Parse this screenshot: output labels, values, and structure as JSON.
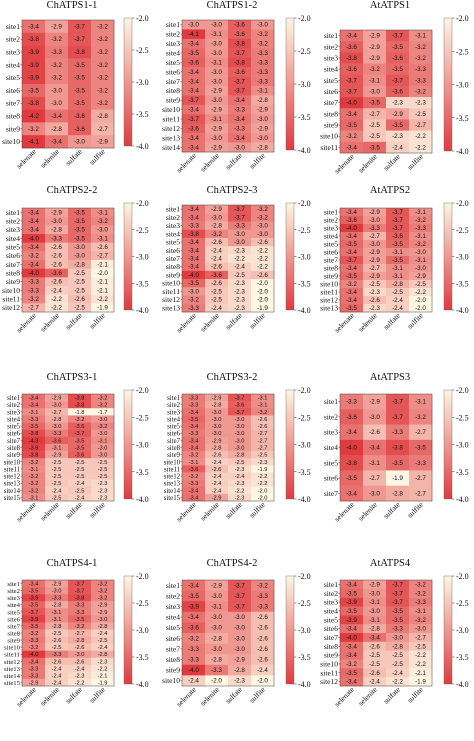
{
  "figure": {
    "compounds": [
      "selenate",
      "selenite",
      "sulfate",
      "sulfite"
    ],
    "colorbar_ticks": [
      "-2.0",
      "-2.5",
      "-3.0",
      "-3.5",
      "-4.0"
    ],
    "colorscale": {
      "min": -4.0,
      "max": -2.0,
      "low_color": "#e03a3e",
      "high_color": "#fdf6e3"
    }
  },
  "chart_data": [
    {
      "type": "heatmap",
      "title": "ChATPS1-1",
      "rows": [
        "site1",
        "site2",
        "site3",
        "site4",
        "site5",
        "site6",
        "site7",
        "site8",
        "site9",
        "site10"
      ],
      "columns": [
        "selenate",
        "selenite",
        "sulfate",
        "sulfite"
      ],
      "values": [
        [
          -3.4,
          -2.9,
          -3.7,
          -3.2
        ],
        [
          -3.8,
          -3.2,
          -3.7,
          -3.2
        ],
        [
          -3.9,
          -3.3,
          -3.8,
          -3.2
        ],
        [
          -3.9,
          -3.2,
          -3.5,
          -3.2
        ],
        [
          -3.9,
          -3.2,
          -3.5,
          -3.2
        ],
        [
          -3.5,
          -3.0,
          -3.5,
          -3.2
        ],
        [
          -3.8,
          -3.0,
          -3.5,
          -3.2
        ],
        [
          -4.2,
          -3.4,
          -3.6,
          -2.8
        ],
        [
          -3.2,
          -2.8,
          -3.6,
          -2.7
        ],
        [
          -4.1,
          -3.4,
          -3.0,
          -2.9
        ]
      ],
      "zlim": [
        -4.0,
        -2.0
      ]
    },
    {
      "type": "heatmap",
      "title": "ChATPS1-2",
      "rows": [
        "site1",
        "site2",
        "site3",
        "site4",
        "site5",
        "site6",
        "site7",
        "site8",
        "site9",
        "site10",
        "site11",
        "site12",
        "site13",
        "site14"
      ],
      "columns": [
        "selenate",
        "selenite",
        "sulfate",
        "sulfite"
      ],
      "values": [
        [
          -3.0,
          -3.0,
          -3.6,
          -3.0
        ],
        [
          -4.1,
          -3.1,
          -3.6,
          -3.2
        ],
        [
          -3.4,
          -3.0,
          -3.8,
          -3.2
        ],
        [
          -3.5,
          -3.0,
          -3.7,
          -3.3
        ],
        [
          -3.6,
          -3.1,
          -3.8,
          -3.3
        ],
        [
          -3.4,
          -3.0,
          -3.6,
          -3.3
        ],
        [
          -3.4,
          -3.0,
          -3.7,
          -3.3
        ],
        [
          -3.4,
          -2.9,
          -3.7,
          -3.1
        ],
        [
          -3.7,
          -3.0,
          -3.4,
          -2.8
        ],
        [
          -3.4,
          -2.9,
          -3.3,
          -2.9
        ],
        [
          -3.7,
          -3.1,
          -3.4,
          -3.0
        ],
        [
          -3.6,
          -2.9,
          -3.3,
          -2.9
        ],
        [
          -3.4,
          -3.0,
          -3.4,
          -3.0
        ],
        [
          -3.4,
          -2.9,
          -3.0,
          -2.8
        ]
      ],
      "zlim": [
        -4.0,
        -2.0
      ]
    },
    {
      "type": "heatmap",
      "title": "AtATPS1",
      "rows": [
        "site1",
        "site2",
        "site3",
        "site4",
        "site5",
        "site6",
        "site7",
        "site8",
        "site9",
        "site10",
        "site11"
      ],
      "columns": [
        "selenate",
        "selenite",
        "sulfate",
        "sulfite"
      ],
      "values": [
        [
          -3.4,
          -2.9,
          -3.7,
          -3.1
        ],
        [
          -3.6,
          -2.9,
          -3.5,
          -3.2
        ],
        [
          -3.8,
          -2.9,
          -3.6,
          -3.2
        ],
        [
          -3.6,
          -3.2,
          -3.5,
          -3.3
        ],
        [
          -3.7,
          -3.1,
          -3.7,
          -3.3
        ],
        [
          -3.7,
          -3.0,
          -3.6,
          -3.2
        ],
        [
          -4.0,
          -3.5,
          -2.3,
          -2.3
        ],
        [
          -3.4,
          -2.7,
          -2.9,
          -2.5
        ],
        [
          -3.5,
          -2.5,
          -3.5,
          -2.7
        ],
        [
          -3.2,
          -2.5,
          -2.3,
          -2.2
        ],
        [
          -3.4,
          -3.5,
          -2.4,
          -2.2
        ]
      ],
      "zlim": [
        -4.0,
        -2.0
      ]
    },
    {
      "type": "heatmap",
      "title": "ChATPS2-2",
      "rows": [
        "site1",
        "site2",
        "site3",
        "site4",
        "site5",
        "site6",
        "site7",
        "site8",
        "site9",
        "site10",
        "site11",
        "site12"
      ],
      "columns": [
        "selenate",
        "selenite",
        "sulfate",
        "sulfite"
      ],
      "values": [
        [
          -3.4,
          -2.9,
          -3.5,
          -3.1
        ],
        [
          -3.4,
          -3.0,
          -3.5,
          -3.2
        ],
        [
          -3.4,
          -2.8,
          -3.5,
          -3.0
        ],
        [
          -4.0,
          -3.3,
          -3.5,
          -3.1
        ],
        [
          -3.4,
          -2.6,
          -3.0,
          -2.6
        ],
        [
          -3.2,
          -2.6,
          -3.0,
          -2.7
        ],
        [
          -3.4,
          -2.6,
          -2.8,
          -2.1
        ],
        [
          -4.0,
          -3.6,
          -2.5,
          -2.0
        ],
        [
          -3.3,
          -2.6,
          -2.5,
          -2.1
        ],
        [
          -3.3,
          -2.4,
          -2.5,
          -2.1
        ],
        [
          -3.2,
          -2.2,
          -2.6,
          -2.2
        ],
        [
          -2.7,
          -2.2,
          -2.5,
          -1.9
        ]
      ],
      "zlim": [
        -4.0,
        -2.0
      ]
    },
    {
      "type": "heatmap",
      "title": "ChATPS2-3",
      "rows": [
        "site1",
        "site2",
        "site3",
        "site4",
        "site5",
        "site6",
        "site7",
        "site8",
        "site9",
        "site10",
        "site11",
        "site12",
        "site13"
      ],
      "columns": [
        "selenate",
        "selenite",
        "sulfate",
        "sulfite"
      ],
      "values": [
        [
          -3.4,
          -2.9,
          -3.7,
          -3.2
        ],
        [
          -3.4,
          -3.0,
          -3.7,
          -3.2
        ],
        [
          -3.3,
          -2.8,
          -3.3,
          -3.0
        ],
        [
          -3.8,
          -3.2,
          -3.0,
          -3.0
        ],
        [
          -3.4,
          -2.6,
          -3.0,
          -2.6
        ],
        [
          -3.4,
          -2.4,
          -2.3,
          -2.2
        ],
        [
          -3.4,
          -2.4,
          -2.2,
          -2.2
        ],
        [
          -3.4,
          -2.6,
          -2.4,
          -2.2
        ],
        [
          -4.0,
          -3.6,
          -2.5,
          -2.6
        ],
        [
          -3.5,
          -2.6,
          -2.3,
          -2.0
        ],
        [
          -3.0,
          -2.5,
          -2.3,
          -2.0
        ],
        [
          -3.2,
          -2.5,
          -2.3,
          -2.0
        ],
        [
          -3.3,
          -2.4,
          -2.3,
          -1.9
        ]
      ],
      "zlim": [
        -4.0,
        -2.0
      ]
    },
    {
      "type": "heatmap",
      "title": "AtATPS2",
      "rows": [
        "site1",
        "site2",
        "site3",
        "site4",
        "site5",
        "site6",
        "site7",
        "site8",
        "site9",
        "site10",
        "site11",
        "site12",
        "site13"
      ],
      "columns": [
        "selenate",
        "selenite",
        "sulfate",
        "sulfite"
      ],
      "values": [
        [
          -3.4,
          -2.9,
          -3.7,
          -3.1
        ],
        [
          -3.6,
          -3.0,
          -3.7,
          -3.2
        ],
        [
          -4.0,
          -3.3,
          -3.7,
          -3.3
        ],
        [
          -3.4,
          -2.7,
          -3.6,
          -3.1
        ],
        [
          -3.5,
          -3.0,
          -3.5,
          -3.2
        ],
        [
          -3.4,
          -2.9,
          -3.1,
          -3.0
        ],
        [
          -3.7,
          -2.9,
          -3.5,
          -3.1
        ],
        [
          -3.4,
          -2.7,
          -3.1,
          -3.0
        ],
        [
          -3.5,
          -2.9,
          -3.1,
          -2.9
        ],
        [
          -3.2,
          -2.5,
          -2.8,
          -2.5
        ],
        [
          -3.4,
          -2.3,
          -2.5,
          -2.2
        ],
        [
          -3.4,
          -2.6,
          -2.4,
          -2.0
        ],
        [
          -3.5,
          -2.3,
          -2.4,
          -2.0
        ]
      ],
      "zlim": [
        -4.0,
        -2.0
      ]
    },
    {
      "type": "heatmap",
      "title": "ChATPS3-1",
      "rows": [
        "site1",
        "site2",
        "site3",
        "site4",
        "site5",
        "site6",
        "site7",
        "site8",
        "site9",
        "site10",
        "site11",
        "site12",
        "site13",
        "site14",
        "site15"
      ],
      "columns": [
        "selenate",
        "selenite",
        "sulfate",
        "sulfite"
      ],
      "values": [
        [
          -3.4,
          -2.9,
          -3.8,
          -3.2
        ],
        [
          -3.4,
          -3.0,
          -3.8,
          -3.2
        ],
        [
          -3.1,
          -2.7,
          -1.8,
          -1.7
        ],
        [
          -3.3,
          -2.8,
          -3.2,
          -3.0
        ],
        [
          -3.5,
          -3.0,
          -3.6,
          -3.2
        ],
        [
          -3.8,
          -3.3,
          -3.7,
          -3.0
        ],
        [
          -4.3,
          -3.6,
          -3.5,
          -3.1
        ],
        [
          -3.9,
          -3.1,
          -3.5,
          -3.0
        ],
        [
          -3.8,
          -2.9,
          -3.6,
          -3.0
        ],
        [
          -3.2,
          -2.5,
          -2.5,
          -2.5
        ],
        [
          -3.1,
          -2.5,
          -2.5,
          -2.5
        ],
        [
          -3.2,
          -2.5,
          -2.5,
          -2.5
        ],
        [
          -3.2,
          -2.5,
          -2.4,
          -2.3
        ],
        [
          -3.2,
          -2.4,
          -2.5,
          -2.3
        ],
        [
          -3.1,
          -2.5,
          -2.4,
          -2.3
        ]
      ],
      "zlim": [
        -4.0,
        -2.0
      ]
    },
    {
      "type": "heatmap",
      "title": "ChATPS3-2",
      "rows": [
        "site1",
        "site2",
        "site3",
        "site4",
        "site5",
        "site6",
        "site7",
        "site8",
        "site9",
        "site10",
        "site11",
        "site12",
        "site13",
        "site14",
        "site15"
      ],
      "columns": [
        "selenate",
        "selenite",
        "sulfate",
        "sulfite"
      ],
      "values": [
        [
          -3.3,
          -2.9,
          -3.7,
          -3.1
        ],
        [
          -3.3,
          -2.8,
          -3.6,
          -3.1
        ],
        [
          -3.4,
          -3.0,
          -3.7,
          -3.2
        ],
        [
          -3.5,
          -3.0,
          -3.0,
          -2.6
        ],
        [
          -3.4,
          -3.0,
          -3.0,
          -2.6
        ],
        [
          -3.3,
          -3.0,
          -3.0,
          -2.7
        ],
        [
          -3.4,
          -2.9,
          -3.0,
          -2.7
        ],
        [
          -3.4,
          -2.8,
          -3.0,
          -2.7
        ],
        [
          -3.2,
          -2.6,
          -2.8,
          -2.5
        ],
        [
          -3.1,
          -2.4,
          -2.5,
          -2.3
        ],
        [
          -3.6,
          -2.6,
          -2.3,
          -1.9
        ],
        [
          -3.2,
          -2.4,
          -2.4,
          -2.2
        ],
        [
          -3.3,
          -2.4,
          -2.3,
          -2.2
        ],
        [
          -3.4,
          -2.4,
          -2.2,
          -2.0
        ],
        [
          -3.4,
          -2.9,
          -2.3,
          -2.0
        ]
      ],
      "zlim": [
        -4.0,
        -2.0
      ]
    },
    {
      "type": "heatmap",
      "title": "AtATPS3",
      "rows": [
        "site1",
        "site2",
        "site3",
        "site4",
        "site5",
        "site6",
        "site7"
      ],
      "columns": [
        "selenate",
        "selenite",
        "sulfate",
        "sulfite"
      ],
      "values": [
        [
          -3.3,
          -2.9,
          -3.7,
          -3.1
        ],
        [
          -3.6,
          -3.0,
          -3.7,
          -3.2
        ],
        [
          -3.4,
          -2.6,
          -3.3,
          -2.7
        ],
        [
          -4.0,
          -3.4,
          -3.8,
          -3.5
        ],
        [
          -3.8,
          -3.1,
          -3.5,
          -3.3
        ],
        [
          -3.5,
          -2.7,
          -1.9,
          -2.7
        ],
        [
          -3.4,
          -3.0,
          -2.8,
          -2.7
        ]
      ],
      "zlim": [
        -4.0,
        -2.0
      ]
    },
    {
      "type": "heatmap",
      "title": "ChATPS4-1",
      "rows": [
        "site1",
        "site2",
        "site3",
        "site4",
        "site5",
        "site6",
        "site7",
        "site8",
        "site9",
        "site10",
        "site11",
        "site12",
        "site13",
        "site14",
        "site15"
      ],
      "columns": [
        "selenate",
        "selenite",
        "sulfate",
        "sulfite"
      ],
      "values": [
        [
          -3.4,
          -2.9,
          -3.7,
          -3.2
        ],
        [
          -3.5,
          -3.0,
          -3.7,
          -3.2
        ],
        [
          -3.9,
          -3.3,
          -3.8,
          -3.2
        ],
        [
          -3.5,
          -2.8,
          -3.3,
          -2.9
        ],
        [
          -3.7,
          -3.1,
          -3.3,
          -2.9
        ],
        [
          -3.9,
          -3.1,
          -3.5,
          -3.0
        ],
        [
          -3.5,
          -2.8,
          -3.2,
          -2.8
        ],
        [
          -3.2,
          -2.5,
          -2.7,
          -2.4
        ],
        [
          -3.3,
          -2.6,
          -2.8,
          -2.5
        ],
        [
          -3.2,
          -2.5,
          -2.6,
          -2.4
        ],
        [
          -4.0,
          -3.3,
          -3.0,
          -2.8
        ],
        [
          -3.4,
          -2.6,
          -2.6,
          -2.3
        ],
        [
          -3.3,
          -2.4,
          -2.4,
          -2.2
        ],
        [
          -3.3,
          -2.4,
          -2.3,
          -2.1
        ],
        [
          -2.9,
          -2.4,
          -2.2,
          -1.9
        ]
      ],
      "zlim": [
        -4.0,
        -2.0
      ]
    },
    {
      "type": "heatmap",
      "title": "ChATPS4-2",
      "rows": [
        "site1",
        "site2",
        "site3",
        "site4",
        "site5",
        "site6",
        "site7",
        "site8",
        "site9",
        "site10"
      ],
      "columns": [
        "selenate",
        "selenite",
        "sulfate",
        "sulfite"
      ],
      "values": [
        [
          -3.4,
          -2.9,
          -3.7,
          -3.2
        ],
        [
          -3.5,
          -3.0,
          -3.7,
          -3.3
        ],
        [
          -3.9,
          -3.1,
          -3.7,
          -3.3
        ],
        [
          -3.4,
          -3.0,
          -3.0,
          -2.6
        ],
        [
          -3.6,
          -3.0,
          -3.0,
          -2.6
        ],
        [
          -3.2,
          -2.8,
          -3.0,
          -2.6
        ],
        [
          -3.3,
          -3.0,
          -3.0,
          -2.6
        ],
        [
          -3.3,
          -2.8,
          -2.9,
          -2.6
        ],
        [
          -4.0,
          -3.3,
          -2.8,
          -2.4
        ],
        [
          -2.4,
          -2.0,
          -2.3,
          -2.0
        ]
      ],
      "zlim": [
        -4.0,
        -2.0
      ]
    },
    {
      "type": "heatmap",
      "title": "AtATPS4",
      "rows": [
        "site1",
        "site2",
        "site3",
        "site4",
        "site5",
        "site6",
        "site7",
        "site8",
        "site9",
        "site10",
        "site11",
        "site12"
      ],
      "columns": [
        "selenate",
        "selenite",
        "sulfate",
        "sulfite"
      ],
      "values": [
        [
          -3.4,
          -2.9,
          -3.7,
          -3.2
        ],
        [
          -3.5,
          -3.0,
          -3.7,
          -3.2
        ],
        [
          -3.9,
          -3.1,
          -3.7,
          -3.3
        ],
        [
          -3.5,
          -3.0,
          -3.5,
          -3.1
        ],
        [
          -3.9,
          -3.1,
          -3.5,
          -3.2
        ],
        [
          -3.4,
          -2.8,
          -3.3,
          -3.0
        ],
        [
          -4.0,
          -3.4,
          -3.0,
          -2.7
        ],
        [
          -3.4,
          -2.6,
          -2.8,
          -2.5
        ],
        [
          -3.4,
          -2.5,
          -2.5,
          -2.2
        ],
        [
          -3.2,
          -2.5,
          -2.5,
          -2.2
        ],
        [
          -3.5,
          -2.6,
          -2.4,
          -2.1
        ],
        [
          -3.4,
          -2.4,
          -2.2,
          -1.9
        ]
      ],
      "zlim": [
        -4.0,
        -2.0
      ]
    }
  ]
}
